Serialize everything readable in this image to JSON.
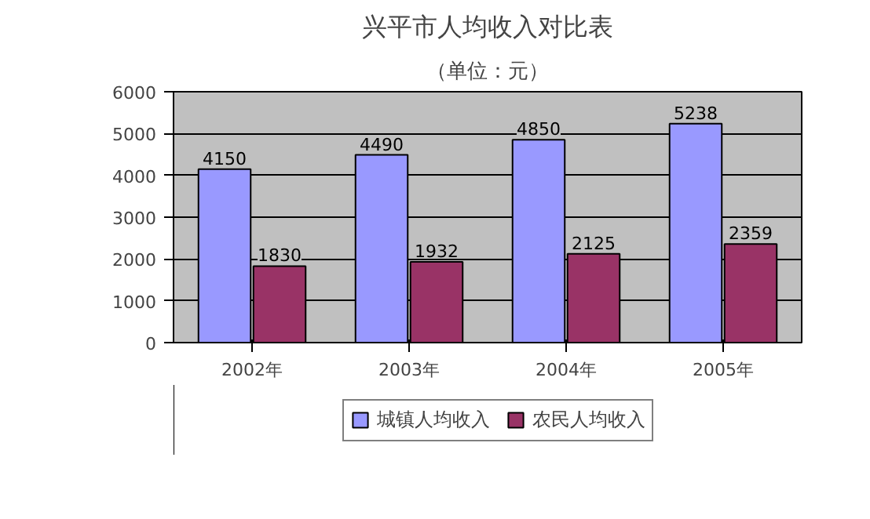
{
  "chart_data": {
    "type": "bar",
    "title": "兴平市人均收入对比表",
    "subtitle": "（单位：元）",
    "categories": [
      "2002年",
      "2003年",
      "2004年",
      "2005年"
    ],
    "series": [
      {
        "name": "城镇人均收入",
        "color": "#9999ff",
        "values": [
          4150,
          4490,
          4850,
          5238
        ]
      },
      {
        "name": "农民人均收入",
        "color": "#993366",
        "values": [
          1830,
          1932,
          2125,
          2359
        ]
      }
    ],
    "ylim": [
      0,
      6000
    ],
    "yticks": [
      0,
      1000,
      2000,
      3000,
      4000,
      5000,
      6000
    ],
    "grid": "y",
    "legend": "bottom",
    "data_labels": true
  }
}
